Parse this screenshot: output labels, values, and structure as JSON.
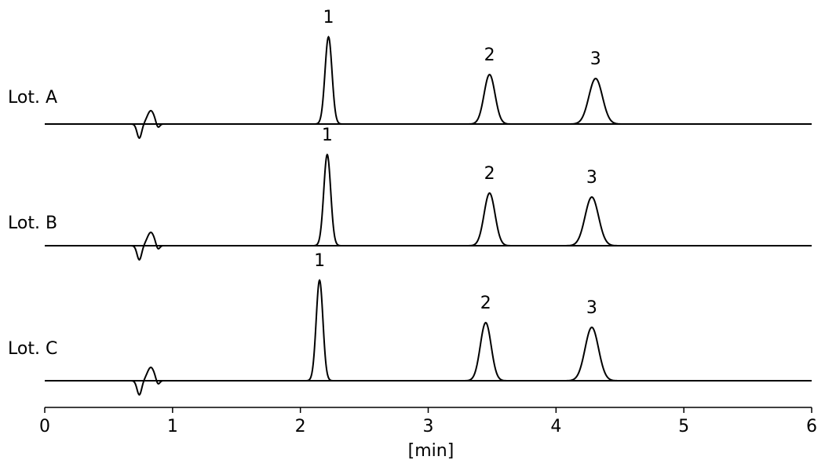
{
  "chart_data": {
    "type": "chromatogram",
    "xlabel": "[min]",
    "xlim": [
      0,
      6
    ],
    "xticks": [
      0,
      1,
      2,
      3,
      4,
      5,
      6
    ],
    "color": "#000000",
    "series": [
      {
        "name": "Lot. A",
        "peaks": [
          {
            "label": "1",
            "x": 2.22,
            "height": 111
          },
          {
            "label": "2",
            "x": 3.48,
            "height": 63
          },
          {
            "label": "3",
            "x": 4.31,
            "height": 58
          }
        ]
      },
      {
        "name": "Lot. B",
        "peaks": [
          {
            "label": "1",
            "x": 2.21,
            "height": 116
          },
          {
            "label": "2",
            "x": 3.48,
            "height": 67
          },
          {
            "label": "3",
            "x": 4.28,
            "height": 62
          }
        ]
      },
      {
        "name": "Lot. C",
        "peaks": [
          {
            "label": "1",
            "x": 2.15,
            "height": 128
          },
          {
            "label": "2",
            "x": 3.45,
            "height": 74
          },
          {
            "label": "3",
            "x": 4.28,
            "height": 68
          }
        ]
      }
    ]
  }
}
